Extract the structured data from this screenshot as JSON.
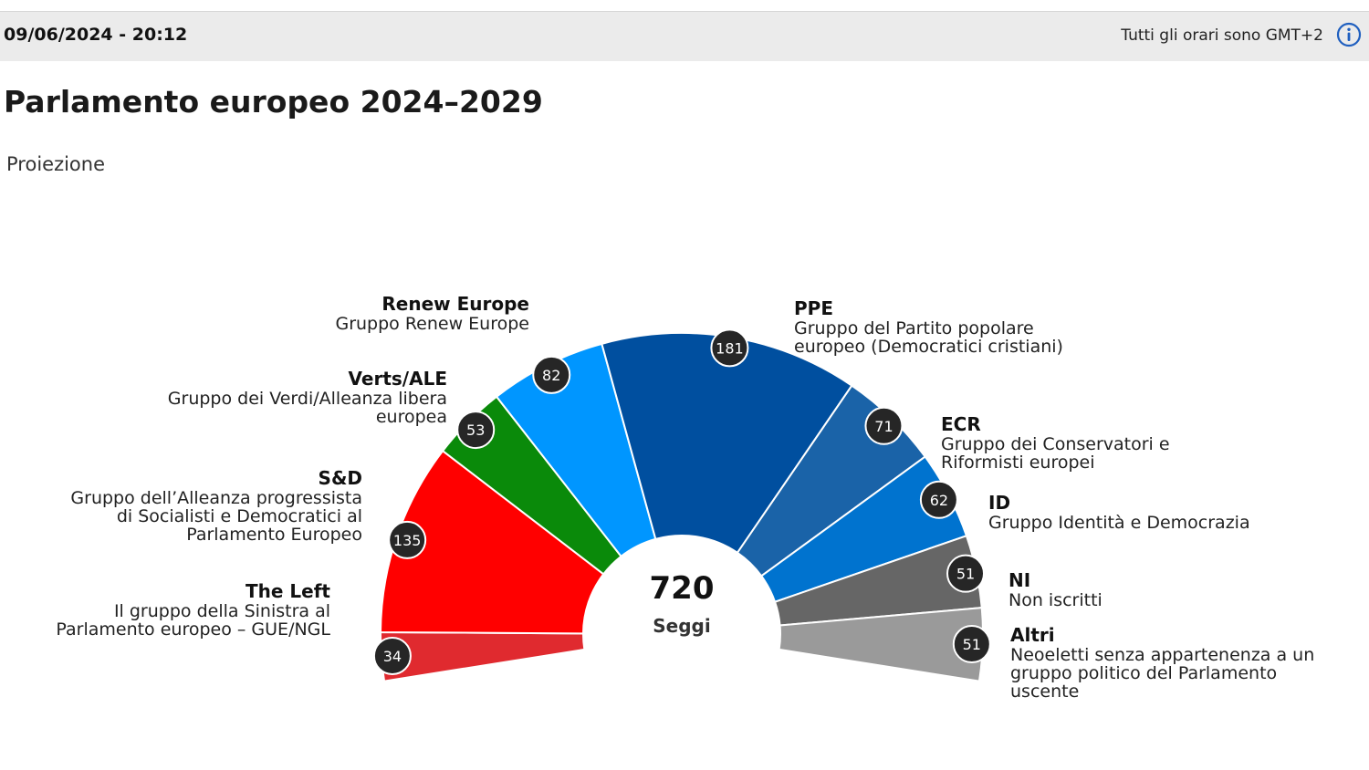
{
  "header": {
    "timestamp": "09/06/2024 - 20:12",
    "timezone_note": "Tutti gli orari sono GMT+2",
    "info_icon": "info-circle-icon"
  },
  "title": "Parlamento europeo 2024–2029",
  "subtitle": "Proiezione",
  "chart_data": {
    "type": "pie",
    "variant": "hemicycle",
    "total": 720,
    "total_label": "Seggi",
    "groups": [
      {
        "id": "left",
        "name": "The Left",
        "full_name": "Il gruppo della Sinistra al\nParlamento europeo – GUE/NGL",
        "seats": 34,
        "color": "#e02a2f"
      },
      {
        "id": "sd",
        "name": "S&D",
        "full_name": "Gruppo dell’Alleanza progressista\ndi Socialisti e Democratici al\nParlamento Europeo",
        "seats": 135,
        "color": "#ff0000"
      },
      {
        "id": "verts",
        "name": "Verts/ALE",
        "full_name": "Gruppo dei Verdi/Alleanza libera\neuropea",
        "seats": 53,
        "color": "#0a8a0a"
      },
      {
        "id": "renew",
        "name": "Renew Europe",
        "full_name": "Gruppo Renew Europe",
        "seats": 82,
        "color": "#0096ff"
      },
      {
        "id": "ppe",
        "name": "PPE",
        "full_name": "Gruppo del Partito popolare\neuropeo (Democratici cristiani)",
        "seats": 181,
        "color": "#004f9f"
      },
      {
        "id": "ecr",
        "name": "ECR",
        "full_name": "Gruppo dei Conservatori e\nRiformisti europei",
        "seats": 71,
        "color": "#1a63a8"
      },
      {
        "id": "id",
        "name": "ID",
        "full_name": "Gruppo Identità e Democrazia",
        "seats": 62,
        "color": "#0073cf"
      },
      {
        "id": "ni",
        "name": "NI",
        "full_name": "Non iscritti",
        "seats": 51,
        "color": "#666666"
      },
      {
        "id": "altri",
        "name": "Altri",
        "full_name": "Neoeletti senza appartenenza a un\ngruppo politico del Parlamento\nuscente",
        "seats": 51,
        "color": "#9a9a9a"
      }
    ]
  }
}
